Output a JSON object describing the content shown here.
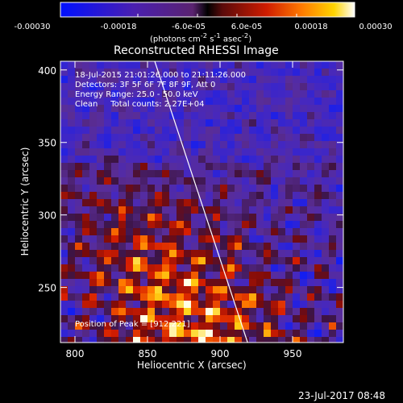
{
  "colorbar": {
    "ticks": [
      "-0.00030",
      "-0.00018",
      "-6.0e-05",
      "6.0e-05",
      "0.00018",
      "0.00030"
    ],
    "units_html": "(photons cm<sup>-2</sup> s<sup>-1</sup> asec<sup>-2</sup>)"
  },
  "chart_data": {
    "type": "heatmap",
    "title": "Reconstructed RHESSI Image",
    "xlabel": "Heliocentric X (arcsec)",
    "ylabel": "Heliocentric Y (arcsec)",
    "xlim": [
      790,
      985
    ],
    "ylim": [
      212,
      406
    ],
    "xticks": [
      800,
      850,
      900,
      950
    ],
    "yticks": [
      250,
      300,
      350,
      400
    ],
    "color_range": [
      -0.0003,
      0.0003
    ],
    "colormap": "blue-purple-red-yellow-white",
    "annotations": [
      "18-Jul-2015 21:01:26.000 to 21:11:26.000",
      "Detectors: 3F 5F 6F 7F 8F 9F, Att 0",
      "Energy Range: 25.0 - 50.0 keV",
      "Clean     Total counts: 2.27E+04"
    ],
    "peak_label": "Position of Peak = [912,221]",
    "peak": [
      912,
      221
    ],
    "limb_line": [
      [
        855,
        406
      ],
      [
        919,
        212
      ]
    ]
  },
  "footer": {
    "timestamp": "23-Jul-2017 08:48"
  }
}
